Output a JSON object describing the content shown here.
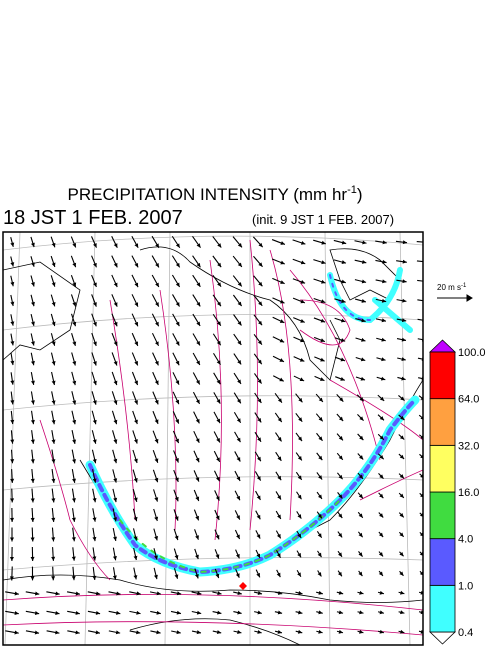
{
  "header": {
    "title": "PRECIPITATION INTENSITY (mm hr",
    "title_exponent": "-1",
    "title_close": ")",
    "valid_time": "18 JST 1 FEB. 2007",
    "init_time": "(init. 9 JST 1 FEB. 2007)"
  },
  "wind_legend": {
    "label": "20 m s",
    "exponent": "-1"
  },
  "colorbar": {
    "levels": [
      0.4,
      {
        "value": 1,
        "label": "1.0"
      },
      {
        "value": 4,
        "label": "4.0"
      },
      {
        "value": 16,
        "label": "16.0"
      },
      {
        "value": 32,
        "label": "32.0"
      },
      {
        "value": 64,
        "label": "64.0"
      },
      {
        "value": 100,
        "label": "100.0"
      }
    ],
    "colors": [
      "#40ffff",
      "#5a5aff",
      "#40dc40",
      "#ffff60",
      "#ffa040",
      "#ff0000"
    ],
    "over_color": "#c000ff",
    "under_color": "#ffffff"
  }
}
